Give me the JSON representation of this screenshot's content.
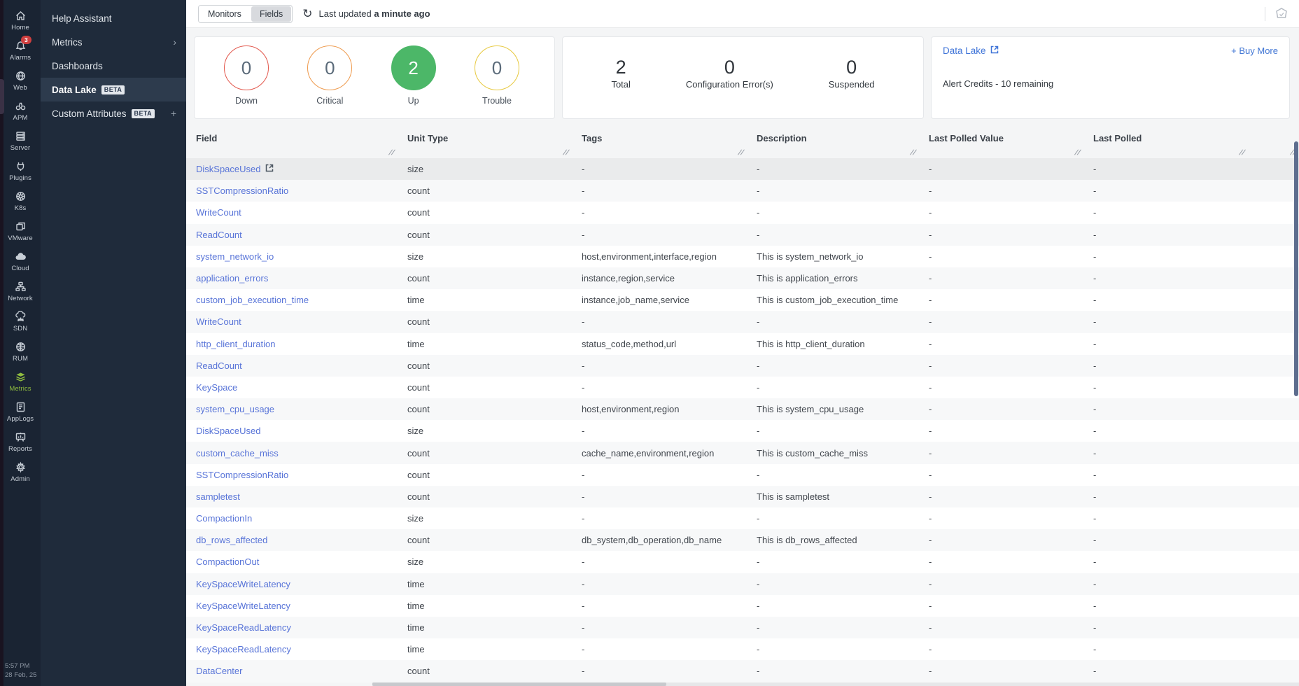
{
  "rail": {
    "items": [
      {
        "id": "home",
        "label": "Home",
        "icon": "home-icon"
      },
      {
        "id": "alarms",
        "label": "Alarms",
        "icon": "alarms-icon",
        "badge": "3"
      },
      {
        "id": "web",
        "label": "Web",
        "icon": "web-icon"
      },
      {
        "id": "apm",
        "label": "APM",
        "icon": "apm-icon"
      },
      {
        "id": "server",
        "label": "Server",
        "icon": "server-icon"
      },
      {
        "id": "plugins",
        "label": "Plugins",
        "icon": "plugins-icon"
      },
      {
        "id": "k8s",
        "label": "K8s",
        "icon": "k8s-icon"
      },
      {
        "id": "vmware",
        "label": "VMware",
        "icon": "vmware-icon"
      },
      {
        "id": "cloud",
        "label": "Cloud",
        "icon": "cloud-icon"
      },
      {
        "id": "network",
        "label": "Network",
        "icon": "network-icon"
      },
      {
        "id": "sdn",
        "label": "SDN",
        "icon": "sdn-icon"
      },
      {
        "id": "rum",
        "label": "RUM",
        "icon": "rum-icon"
      },
      {
        "id": "metrics",
        "label": "Metrics",
        "icon": "metrics-icon",
        "active": true
      },
      {
        "id": "applogs",
        "label": "AppLogs",
        "icon": "applogs-icon"
      },
      {
        "id": "reports",
        "label": "Reports",
        "icon": "reports-icon"
      },
      {
        "id": "admin",
        "label": "Admin",
        "icon": "admin-icon"
      }
    ],
    "clock": {
      "time": "5:57 PM",
      "date": "28 Feb, 25"
    }
  },
  "menu": {
    "items": [
      {
        "id": "help-assistant",
        "label": "Help Assistant"
      },
      {
        "id": "metrics",
        "label": "Metrics",
        "chevron": "›"
      },
      {
        "id": "dashboards",
        "label": "Dashboards"
      },
      {
        "id": "data-lake",
        "label": "Data Lake",
        "beta": "BETA",
        "active": true
      },
      {
        "id": "custom-attributes",
        "label": "Custom Attributes",
        "beta": "BETA",
        "plus": "+"
      }
    ]
  },
  "topbar": {
    "toggle": {
      "options": [
        "Monitors",
        "Fields"
      ],
      "selected": "Fields"
    },
    "refresh_icon": "refresh-icon",
    "last_updated_prefix": "Last updated",
    "last_updated_value": "a minute ago"
  },
  "status_card": {
    "items": [
      {
        "label": "Down",
        "value": "0",
        "color": "#e2574c",
        "filled": false
      },
      {
        "label": "Critical",
        "value": "0",
        "color": "#ee9a4d",
        "filled": false
      },
      {
        "label": "Up",
        "value": "2",
        "color": "#4cb768",
        "filled": true
      },
      {
        "label": "Trouble",
        "value": "0",
        "color": "#e7c93f",
        "filled": false
      }
    ]
  },
  "summary_card": {
    "items": [
      {
        "value": "2",
        "label": "Total"
      },
      {
        "value": "0",
        "label": "Configuration Error(s)"
      },
      {
        "value": "0",
        "label": "Suspended"
      }
    ]
  },
  "credits_card": {
    "title": "Data Lake",
    "buy_more": "+ Buy More",
    "credits_text": "Alert Credits - 10 remaining"
  },
  "table": {
    "columns": [
      "Field",
      "Unit Type",
      "Tags",
      "Description",
      "Last Polled Value",
      "Last Polled"
    ],
    "rows": [
      {
        "field": "DiskSpaceUsed",
        "external": true,
        "unit": "size",
        "tags": "-",
        "description": "-",
        "last_polled_value": "-",
        "last_polled": "-"
      },
      {
        "field": "SSTCompressionRatio",
        "unit": "count",
        "tags": "-",
        "description": "-",
        "last_polled_value": "-",
        "last_polled": "-"
      },
      {
        "field": "WriteCount",
        "unit": "count",
        "tags": "-",
        "description": "-",
        "last_polled_value": "-",
        "last_polled": "-"
      },
      {
        "field": "ReadCount",
        "unit": "count",
        "tags": "-",
        "description": "-",
        "last_polled_value": "-",
        "last_polled": "-"
      },
      {
        "field": "system_network_io",
        "unit": "size",
        "tags": "host,environment,interface,region",
        "description": "This is system_network_io",
        "last_polled_value": "-",
        "last_polled": "-"
      },
      {
        "field": "application_errors",
        "unit": "count",
        "tags": "instance,region,service",
        "description": "This is application_errors",
        "last_polled_value": "-",
        "last_polled": "-"
      },
      {
        "field": "custom_job_execution_time",
        "unit": "time",
        "tags": "instance,job_name,service",
        "description": "This is custom_job_execution_time",
        "last_polled_value": "-",
        "last_polled": "-"
      },
      {
        "field": "WriteCount",
        "unit": "count",
        "tags": "-",
        "description": "-",
        "last_polled_value": "-",
        "last_polled": "-"
      },
      {
        "field": "http_client_duration",
        "unit": "time",
        "tags": "status_code,method,url",
        "description": "This is http_client_duration",
        "last_polled_value": "-",
        "last_polled": "-"
      },
      {
        "field": "ReadCount",
        "unit": "count",
        "tags": "-",
        "description": "-",
        "last_polled_value": "-",
        "last_polled": "-"
      },
      {
        "field": "KeySpace",
        "unit": "count",
        "tags": "-",
        "description": "-",
        "last_polled_value": "-",
        "last_polled": "-"
      },
      {
        "field": "system_cpu_usage",
        "unit": "count",
        "tags": "host,environment,region",
        "description": "This is system_cpu_usage",
        "last_polled_value": "-",
        "last_polled": "-"
      },
      {
        "field": "DiskSpaceUsed",
        "unit": "size",
        "tags": "-",
        "description": "-",
        "last_polled_value": "-",
        "last_polled": "-"
      },
      {
        "field": "custom_cache_miss",
        "unit": "count",
        "tags": "cache_name,environment,region",
        "description": "This is custom_cache_miss",
        "last_polled_value": "-",
        "last_polled": "-"
      },
      {
        "field": "SSTCompressionRatio",
        "unit": "count",
        "tags": "-",
        "description": "-",
        "last_polled_value": "-",
        "last_polled": "-"
      },
      {
        "field": "sampletest",
        "unit": "count",
        "tags": "-",
        "description": "This is sampletest",
        "last_polled_value": "-",
        "last_polled": "-"
      },
      {
        "field": "CompactionIn",
        "unit": "size",
        "tags": "-",
        "description": "-",
        "last_polled_value": "-",
        "last_polled": "-"
      },
      {
        "field": "db_rows_affected",
        "unit": "count",
        "tags": "db_system,db_operation,db_name",
        "description": "This is db_rows_affected",
        "last_polled_value": "-",
        "last_polled": "-"
      },
      {
        "field": "CompactionOut",
        "unit": "size",
        "tags": "-",
        "description": "-",
        "last_polled_value": "-",
        "last_polled": "-"
      },
      {
        "field": "KeySpaceWriteLatency",
        "unit": "time",
        "tags": "-",
        "description": "-",
        "last_polled_value": "-",
        "last_polled": "-"
      },
      {
        "field": "KeySpaceWriteLatency",
        "unit": "time",
        "tags": "-",
        "description": "-",
        "last_polled_value": "-",
        "last_polled": "-"
      },
      {
        "field": "KeySpaceReadLatency",
        "unit": "time",
        "tags": "-",
        "description": "-",
        "last_polled_value": "-",
        "last_polled": "-"
      },
      {
        "field": "KeySpaceReadLatency",
        "unit": "time",
        "tags": "-",
        "description": "-",
        "last_polled_value": "-",
        "last_polled": "-"
      },
      {
        "field": "DataCenter",
        "unit": "count",
        "tags": "-",
        "description": "-",
        "last_polled_value": "-",
        "last_polled": "-"
      }
    ]
  }
}
